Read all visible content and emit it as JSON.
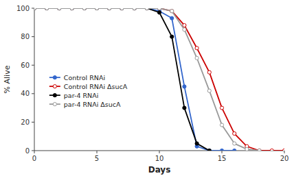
{
  "chart_data": {
    "type": "line",
    "xlabel": "Days",
    "ylabel": "% Alive",
    "xlim": [
      0,
      20
    ],
    "ylim": [
      0,
      100
    ],
    "xticks": [
      0,
      5,
      10,
      15,
      20
    ],
    "yticks": [
      0,
      20,
      40,
      60,
      80,
      100
    ],
    "grid": false,
    "legend": "left",
    "series": [
      {
        "name": "Control RNAi",
        "color": "#3366cc",
        "marker": "circle",
        "x": [
          0,
          1,
          2,
          3,
          4,
          5,
          6,
          7,
          8,
          9,
          10,
          11,
          12,
          13,
          14,
          15,
          16
        ],
        "values": [
          100,
          100,
          100,
          100,
          100,
          100,
          100,
          100,
          100,
          100,
          98,
          93,
          45,
          3,
          0,
          0,
          0
        ]
      },
      {
        "name": "Control RNAi ΔsucA",
        "color": "#cc0000",
        "marker": "open-circle",
        "x": [
          0,
          1,
          2,
          3,
          4,
          5,
          6,
          7,
          8,
          9,
          10,
          11,
          12,
          13,
          14,
          15,
          16,
          17,
          18,
          19,
          20
        ],
        "values": [
          100,
          100,
          100,
          100,
          100,
          100,
          100,
          100,
          100,
          100,
          100,
          98,
          88,
          72,
          55,
          30,
          12,
          3,
          0,
          0,
          0
        ]
      },
      {
        "name": "par-4 RNAi",
        "color": "#000000",
        "marker": "circle",
        "x": [
          0,
          1,
          2,
          3,
          4,
          5,
          6,
          7,
          8,
          9,
          10,
          11,
          12,
          13,
          14
        ],
        "values": [
          100,
          100,
          100,
          100,
          100,
          100,
          100,
          100,
          100,
          100,
          97,
          80,
          30,
          5,
          0
        ]
      },
      {
        "name": "par-4 RNAi ΔsucA",
        "color": "#999999",
        "marker": "open-circle",
        "x": [
          0,
          1,
          2,
          3,
          4,
          5,
          6,
          7,
          8,
          9,
          10,
          11,
          12,
          13,
          14,
          15,
          16,
          17,
          18
        ],
        "values": [
          100,
          100,
          100,
          100,
          100,
          100,
          100,
          100,
          100,
          100,
          100,
          98,
          85,
          65,
          42,
          18,
          5,
          1,
          0
        ]
      }
    ]
  }
}
